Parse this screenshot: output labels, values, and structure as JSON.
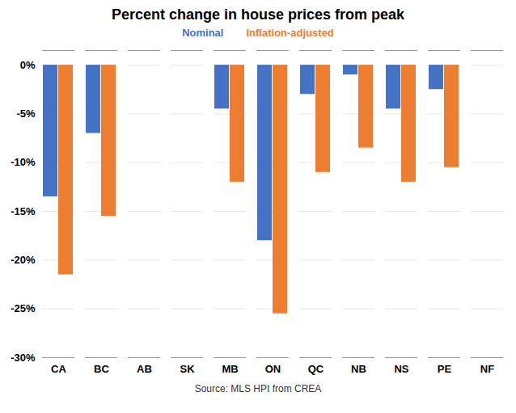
{
  "chart_data": {
    "type": "bar",
    "title": "Percent change in house prices from peak",
    "categories": [
      "CA",
      "BC",
      "AB",
      "SK",
      "MB",
      "ON",
      "QC",
      "NB",
      "NS",
      "PE",
      "NF"
    ],
    "series": [
      {
        "name": "Nominal",
        "color": "#4472C4",
        "values": [
          -13.5,
          -7.0,
          0.0,
          0.0,
          -4.5,
          -18.0,
          -3.0,
          -1.0,
          -4.5,
          -2.5,
          0.0
        ]
      },
      {
        "name": "Inflation-adjusted",
        "color": "#ED7D31",
        "values": [
          -21.5,
          -15.5,
          0.0,
          0.0,
          -12.0,
          -25.5,
          -11.0,
          -8.5,
          -12.0,
          -10.5,
          0.0
        ]
      }
    ],
    "ylim": [
      -30,
      1.5
    ],
    "yticks": [
      {
        "value": 0,
        "label": "0%"
      },
      {
        "value": -5,
        "label": "-5%"
      },
      {
        "value": -10,
        "label": "-10%"
      },
      {
        "value": -15,
        "label": "-15%"
      },
      {
        "value": -20,
        "label": "-20%"
      },
      {
        "value": -25,
        "label": "-25%"
      },
      {
        "value": -30,
        "label": "-30%"
      }
    ],
    "grid": true,
    "legend": "top",
    "annotations": [
      "Source: MLS HPI from CREA"
    ]
  }
}
